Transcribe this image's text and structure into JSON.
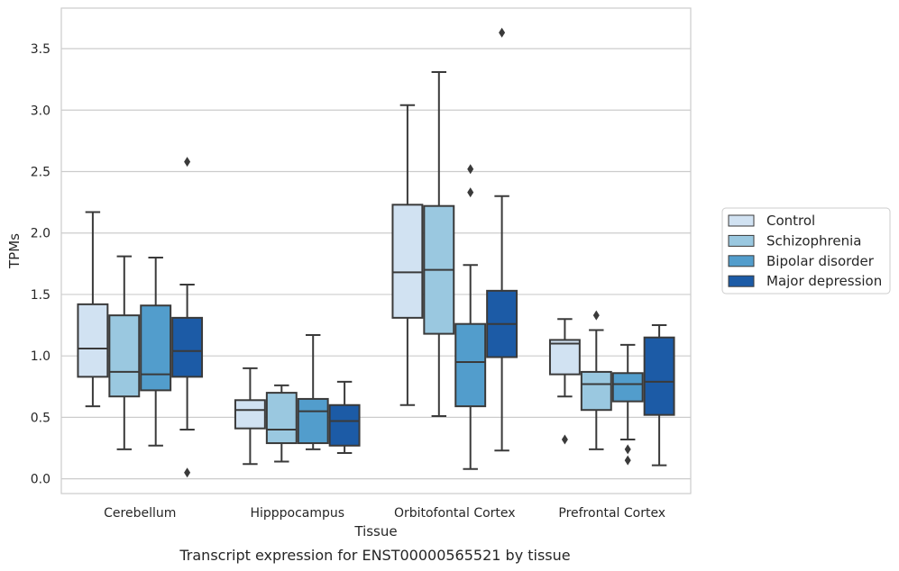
{
  "caption": "Transcript expression for ENST00000565521 by tissue",
  "chart_data": {
    "type": "box",
    "xlabel": "Tissue",
    "ylabel": "TPMs",
    "ylim": [
      -0.12,
      3.83
    ],
    "yticks": [
      "0.0",
      "0.5",
      "1.0",
      "1.5",
      "2.0",
      "2.5",
      "3.0",
      "3.5"
    ],
    "grid": "horizontal",
    "legend_position": "right",
    "categories": [
      "Cerebellum",
      "Hipppocampus",
      "Orbitofontal Cortex",
      "Prefrontal Cortex"
    ],
    "series": [
      {
        "name": "Control",
        "color": "#d1e2f2",
        "boxes": [
          {
            "whislo": 0.59,
            "q1": 0.83,
            "med": 1.06,
            "q3": 1.42,
            "whishi": 2.17,
            "fliers": []
          },
          {
            "whislo": 0.12,
            "q1": 0.41,
            "med": 0.56,
            "q3": 0.64,
            "whishi": 0.9,
            "fliers": []
          },
          {
            "whislo": 0.6,
            "q1": 1.31,
            "med": 1.68,
            "q3": 2.23,
            "whishi": 3.04,
            "fliers": []
          },
          {
            "whislo": 0.67,
            "q1": 0.85,
            "med": 1.1,
            "q3": 1.13,
            "whishi": 1.3,
            "fliers": [
              0.32
            ]
          }
        ]
      },
      {
        "name": "Schizophrenia",
        "color": "#9ac8e0",
        "boxes": [
          {
            "whislo": 0.24,
            "q1": 0.67,
            "med": 0.87,
            "q3": 1.33,
            "whishi": 1.81,
            "fliers": []
          },
          {
            "whislo": 0.14,
            "q1": 0.29,
            "med": 0.4,
            "q3": 0.7,
            "whishi": 0.76,
            "fliers": []
          },
          {
            "whislo": 0.51,
            "q1": 1.18,
            "med": 1.7,
            "q3": 2.22,
            "whishi": 3.31,
            "fliers": []
          },
          {
            "whislo": 0.24,
            "q1": 0.56,
            "med": 0.77,
            "q3": 0.87,
            "whishi": 1.21,
            "fliers": [
              1.33
            ]
          }
        ]
      },
      {
        "name": "Bipolar disorder",
        "color": "#529dcc",
        "boxes": [
          {
            "whislo": 0.27,
            "q1": 0.72,
            "med": 0.85,
            "q3": 1.41,
            "whishi": 1.8,
            "fliers": []
          },
          {
            "whislo": 0.24,
            "q1": 0.29,
            "med": 0.55,
            "q3": 0.65,
            "whishi": 1.17,
            "fliers": []
          },
          {
            "whislo": 0.08,
            "q1": 0.59,
            "med": 0.95,
            "q3": 1.26,
            "whishi": 1.74,
            "fliers": [
              2.33,
              2.52
            ]
          },
          {
            "whislo": 0.32,
            "q1": 0.63,
            "med": 0.77,
            "q3": 0.86,
            "whishi": 1.09,
            "fliers": [
              0.24,
              0.15
            ]
          }
        ]
      },
      {
        "name": "Major depression",
        "color": "#1c5ba6",
        "boxes": [
          {
            "whislo": 0.4,
            "q1": 0.83,
            "med": 1.04,
            "q3": 1.31,
            "whishi": 1.58,
            "fliers": [
              2.58,
              0.05
            ]
          },
          {
            "whislo": 0.21,
            "q1": 0.27,
            "med": 0.47,
            "q3": 0.6,
            "whishi": 0.79,
            "fliers": []
          },
          {
            "whislo": 0.23,
            "q1": 0.99,
            "med": 1.26,
            "q3": 1.53,
            "whishi": 2.3,
            "fliers": [
              3.63
            ]
          },
          {
            "whislo": 0.11,
            "q1": 0.52,
            "med": 0.79,
            "q3": 1.15,
            "whishi": 1.25,
            "fliers": []
          }
        ]
      }
    ]
  }
}
